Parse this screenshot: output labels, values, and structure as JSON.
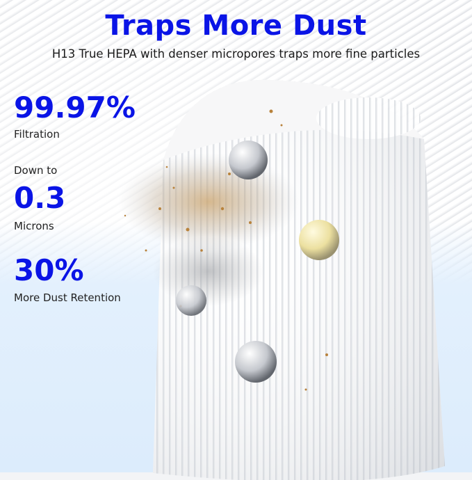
{
  "header": {
    "title": "Traps More Dust",
    "subtitle": "H13 True HEPA with denser micropores traps more fine particles"
  },
  "stats": [
    {
      "pre": "",
      "value": "99.97%",
      "caption": "Filtration"
    },
    {
      "pre": "Down to",
      "value": "0.3",
      "caption": "Microns"
    },
    {
      "pre": "",
      "value": "30%",
      "caption": "More Dust Retention"
    }
  ],
  "colors": {
    "accent": "#0a14e6",
    "background_wash": "#e1eefc"
  }
}
